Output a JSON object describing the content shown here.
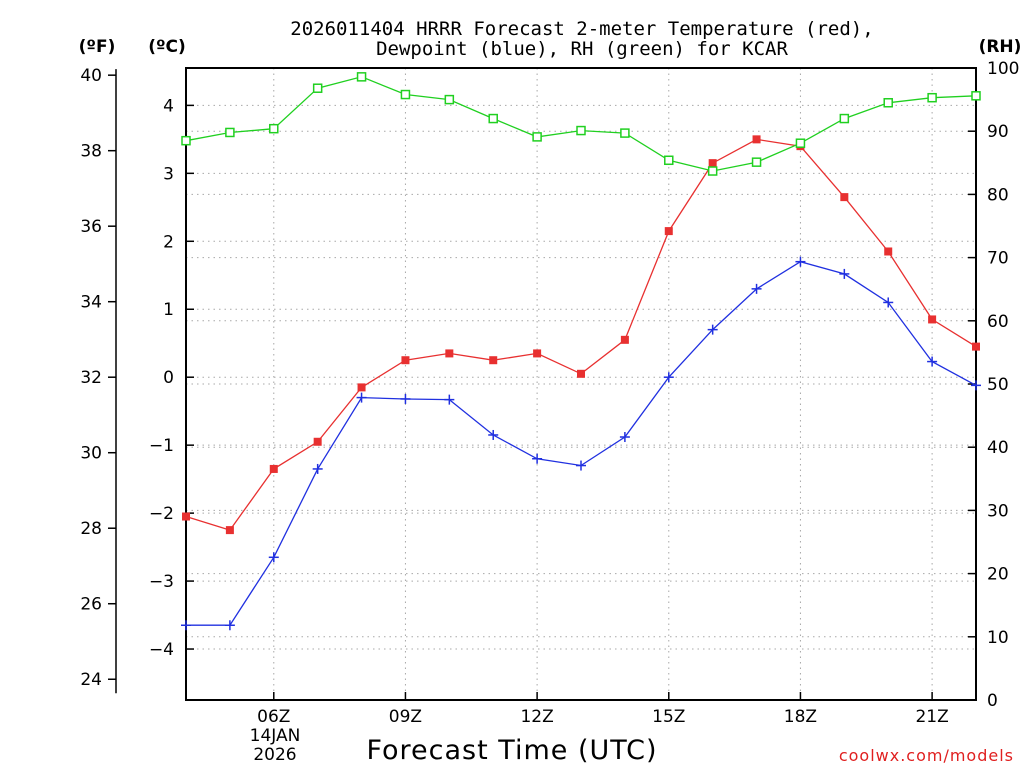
{
  "chart_data": {
    "type": "line",
    "title_line1": "2026011404 HRRR Forecast 2-meter Temperature (red),",
    "title_line2": "Dewpoint (blue), RH (green) for KCAR",
    "xlabel": "Forecast Time (UTC)",
    "credit": "coolwx.com/models",
    "units": {
      "fahrenheit": "(ºF)",
      "celsius": "(ºC)",
      "rh": "(RH)"
    },
    "date_label": [
      "14JAN",
      "2026"
    ],
    "x_hours": [
      4,
      5,
      6,
      7,
      8,
      9,
      10,
      11,
      12,
      13,
      14,
      15,
      16,
      17,
      18,
      19,
      20,
      21,
      22
    ],
    "xlim": [
      4,
      22
    ],
    "x_ticks": [
      {
        "hour": 6,
        "label": "06Z"
      },
      {
        "hour": 9,
        "label": "09Z"
      },
      {
        "hour": 12,
        "label": "12Z"
      },
      {
        "hour": 15,
        "label": "15Z"
      },
      {
        "hour": 18,
        "label": "18Z"
      },
      {
        "hour": 21,
        "label": "21Z"
      }
    ],
    "celsius_lim": [
      -4.75,
      4.55
    ],
    "celsius_ticks": [
      -4,
      -3,
      -2,
      -1,
      0,
      1,
      2,
      3,
      4
    ],
    "fahrenheit_ticks": [
      24,
      26,
      28,
      30,
      32,
      34,
      36,
      38,
      40
    ],
    "rh_lim": [
      0,
      100
    ],
    "rh_ticks": [
      0,
      10,
      20,
      30,
      40,
      50,
      60,
      70,
      80,
      90,
      100
    ],
    "series": [
      {
        "name": "Temperature",
        "axis": "celsius",
        "color": "#e83030",
        "marker": "filled-square",
        "values": [
          -2.05,
          -2.25,
          -1.35,
          -0.95,
          -0.15,
          0.25,
          0.35,
          0.25,
          0.35,
          0.05,
          0.55,
          2.15,
          3.15,
          3.5,
          3.4,
          2.65,
          1.85,
          0.85,
          0.45
        ]
      },
      {
        "name": "Dewpoint",
        "axis": "celsius",
        "color": "#2030e0",
        "marker": "plus",
        "values": [
          -3.65,
          -3.65,
          -2.65,
          -1.35,
          -0.3,
          -0.32,
          -0.33,
          -0.85,
          -1.2,
          -1.3,
          -0.88,
          0.0,
          0.7,
          1.3,
          1.7,
          1.52,
          1.1,
          0.23,
          -0.12
        ]
      },
      {
        "name": "RH",
        "axis": "rh",
        "color": "#20d020",
        "marker": "open-square",
        "values": [
          88.5,
          89.8,
          90.4,
          96.8,
          98.6,
          95.8,
          95.0,
          92.0,
          89.1,
          90.1,
          89.7,
          85.4,
          83.7,
          85.1,
          88.1,
          92.0,
          94.5,
          95.3,
          95.6
        ]
      }
    ]
  }
}
